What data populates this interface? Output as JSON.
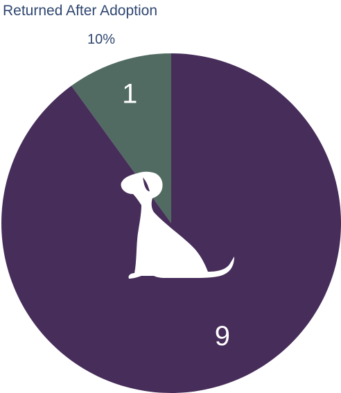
{
  "chart_data": {
    "type": "pie",
    "title": "Returned After Adoption",
    "highlight_percent": "10%",
    "slices": [
      {
        "value": 1,
        "label": "1",
        "color": "#516b62"
      },
      {
        "value": 9,
        "label": "9",
        "color": "#472d5a"
      }
    ]
  },
  "icons": {
    "center": "dog-sitting-icon"
  }
}
